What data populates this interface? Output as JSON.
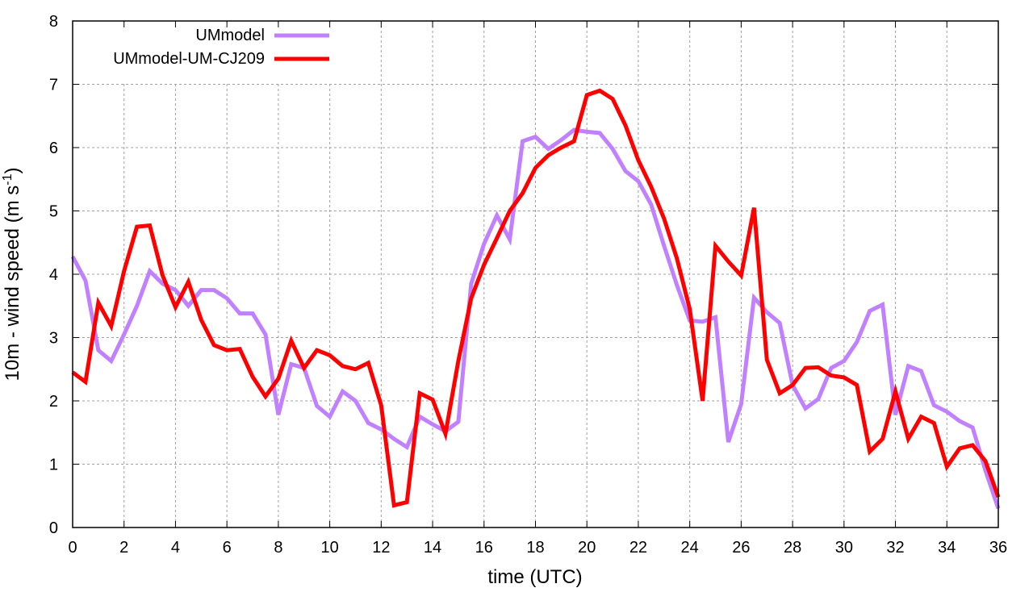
{
  "chart_data": {
    "type": "line",
    "title": "",
    "xlabel": "time (UTC)",
    "ylabel": {
      "text": "10m - wind speed  (m s",
      "sup": "-1",
      "close": ")"
    },
    "xlim": [
      0,
      36
    ],
    "ylim": [
      0,
      8
    ],
    "xticks": [
      0,
      2,
      4,
      6,
      8,
      10,
      12,
      14,
      16,
      18,
      20,
      22,
      24,
      26,
      28,
      30,
      32,
      34,
      36
    ],
    "yticks": [
      0,
      1,
      2,
      3,
      4,
      5,
      6,
      7,
      8
    ],
    "grid": true,
    "legend_position": "top-left",
    "x": [
      0,
      0.5,
      1,
      1.5,
      2,
      2.5,
      3,
      3.5,
      4,
      4.5,
      5,
      5.5,
      6,
      6.5,
      7,
      7.5,
      8,
      8.5,
      9,
      9.5,
      10,
      10.5,
      11,
      11.5,
      12,
      12.5,
      13,
      13.5,
      14,
      14.5,
      15,
      15.5,
      16,
      16.5,
      17,
      17.5,
      18,
      18.5,
      19,
      19.5,
      20,
      20.5,
      21,
      21.5,
      22,
      22.5,
      23,
      23.5,
      24,
      24.5,
      25,
      25.5,
      26,
      26.5,
      27,
      27.5,
      28,
      28.5,
      29,
      29.5,
      30,
      30.5,
      31,
      31.5,
      32,
      32.5,
      33,
      33.5,
      34,
      34.5,
      35,
      35.5,
      36
    ],
    "series": [
      {
        "name": "UMmodel",
        "color": "#c080ff",
        "values": [
          4.28,
          3.9,
          2.8,
          2.63,
          3.05,
          3.5,
          4.05,
          3.85,
          3.75,
          3.5,
          3.75,
          3.75,
          3.62,
          3.38,
          3.38,
          3.05,
          1.78,
          2.58,
          2.52,
          1.92,
          1.75,
          2.15,
          2.0,
          1.65,
          1.55,
          1.4,
          1.27,
          1.75,
          1.63,
          1.52,
          1.67,
          3.85,
          4.48,
          4.93,
          4.55,
          6.1,
          6.17,
          5.98,
          6.12,
          6.28,
          6.25,
          6.23,
          5.98,
          5.63,
          5.47,
          5.1,
          4.45,
          3.83,
          3.27,
          3.25,
          3.32,
          1.35,
          1.95,
          3.63,
          3.4,
          3.23,
          2.25,
          1.88,
          2.03,
          2.52,
          2.63,
          2.93,
          3.42,
          3.52,
          1.78,
          2.55,
          2.47,
          1.93,
          1.83,
          1.68,
          1.58,
          0.9,
          0.3
        ]
      },
      {
        "name": "UMmodel-UM-CJ209",
        "color": "#ff0000",
        "values": [
          2.45,
          2.3,
          3.55,
          3.18,
          4.05,
          4.75,
          4.77,
          3.98,
          3.48,
          3.88,
          3.28,
          2.88,
          2.8,
          2.82,
          2.38,
          2.07,
          2.35,
          2.95,
          2.52,
          2.8,
          2.72,
          2.55,
          2.5,
          2.6,
          1.93,
          0.35,
          0.4,
          2.12,
          2.02,
          1.48,
          2.63,
          3.62,
          4.15,
          4.57,
          5.0,
          5.28,
          5.68,
          5.88,
          6.0,
          6.1,
          6.83,
          6.9,
          6.77,
          6.35,
          5.8,
          5.38,
          4.88,
          4.25,
          3.45,
          2.0,
          4.45,
          4.2,
          3.98,
          5.05,
          2.65,
          2.12,
          2.25,
          2.52,
          2.53,
          2.4,
          2.37,
          2.25,
          1.2,
          1.4,
          2.15,
          1.4,
          1.75,
          1.65,
          0.96,
          1.25,
          1.3,
          1.05,
          0.48
        ]
      }
    ]
  }
}
